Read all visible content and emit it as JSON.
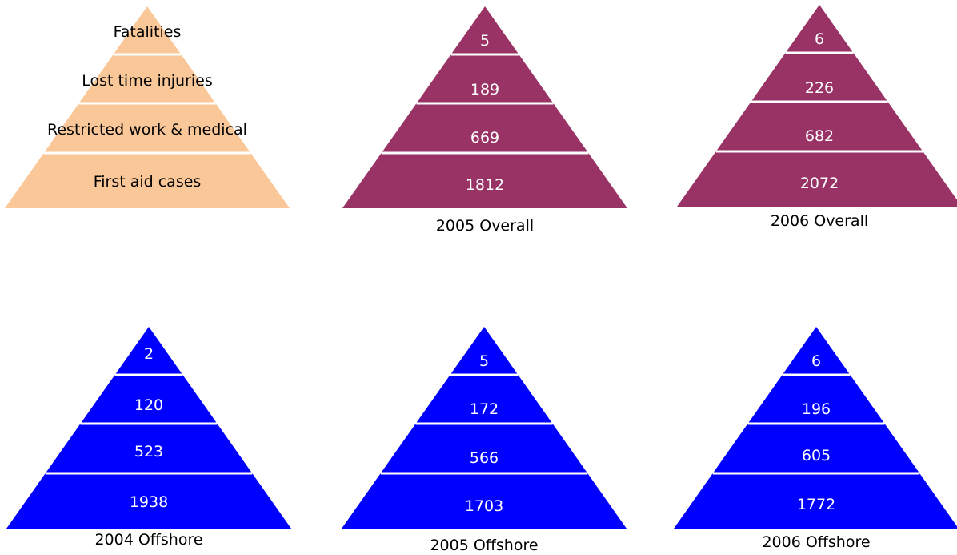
{
  "legend": {
    "fill": "#FAC898",
    "layers": [
      "Fatalities",
      "Lost time injuries",
      "Restricted work & medical",
      "First aid cases"
    ]
  },
  "colors": {
    "overall": "#993366",
    "offshore": "#0000FF",
    "separator": "#FFFFFF"
  },
  "pyramids": [
    {
      "title": "2005 Overall",
      "color": "#993366",
      "values": [
        "5",
        "189",
        "669",
        "1812"
      ]
    },
    {
      "title": "2006 Overall",
      "color": "#993366",
      "values": [
        "6",
        "226",
        "682",
        "2072"
      ]
    },
    {
      "title": "2004 Offshore",
      "color": "#0000FF",
      "values": [
        "2",
        "120",
        "523",
        "1938"
      ]
    },
    {
      "title": "2005 Offshore",
      "color": "#0000FF",
      "values": [
        "5",
        "172",
        "566",
        "1703"
      ]
    },
    {
      "title": "2006 Offshore",
      "color": "#0000FF",
      "values": [
        "6",
        "196",
        "605",
        "1772"
      ]
    }
  ]
}
